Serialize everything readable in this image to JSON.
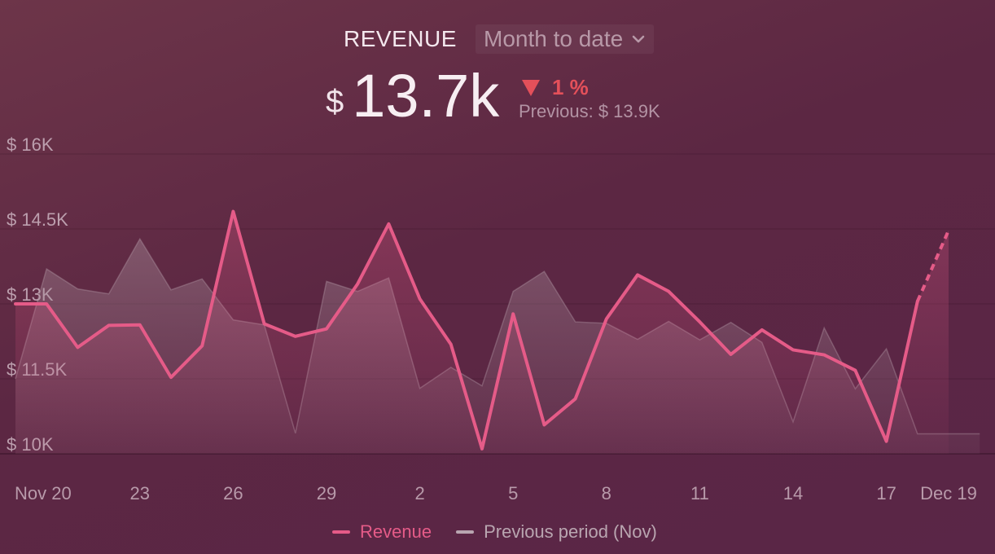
{
  "header": {
    "title": "REVENUE",
    "period_label": "Month to date",
    "currency": "$",
    "value": "13.7k",
    "change_pct": "1 %",
    "change_direction": "down",
    "previous": "Previous: $ 13.9K"
  },
  "colors": {
    "revenue": "#e55b88",
    "previous": "#9b7f8d",
    "negative": "#e4505a"
  },
  "chart_data": {
    "type": "line",
    "ylim": [
      10000,
      16000
    ],
    "yticks": [
      10000,
      11500,
      13000,
      14500,
      16000
    ],
    "ytick_labels": [
      "$ 10K",
      "$ 11.5K",
      "$ 13K",
      "$ 14.5K",
      "$ 16K"
    ],
    "x": [
      "2023-11-19",
      "2023-11-20",
      "2023-11-21",
      "2023-11-22",
      "2023-11-23",
      "2023-11-24",
      "2023-11-25",
      "2023-11-26",
      "2023-11-27",
      "2023-11-28",
      "2023-11-29",
      "2023-11-30",
      "2023-12-01",
      "2023-12-02",
      "2023-12-03",
      "2023-12-04",
      "2023-12-05",
      "2023-12-06",
      "2023-12-07",
      "2023-12-08",
      "2023-12-09",
      "2023-12-10",
      "2023-12-11",
      "2023-12-12",
      "2023-12-13",
      "2023-12-14",
      "2023-12-15",
      "2023-12-16",
      "2023-12-17",
      "2023-12-18",
      "2023-12-19",
      "2023-12-20"
    ],
    "xtick_labels": [
      {
        "date": "2023-11-20",
        "label": "Nov 20"
      },
      {
        "date": "2023-11-23",
        "label": "23"
      },
      {
        "date": "2023-11-26",
        "label": "26"
      },
      {
        "date": "2023-11-29",
        "label": "29"
      },
      {
        "date": "2023-12-02",
        "label": "2"
      },
      {
        "date": "2023-12-05",
        "label": "5"
      },
      {
        "date": "2023-12-08",
        "label": "8"
      },
      {
        "date": "2023-12-11",
        "label": "11"
      },
      {
        "date": "2023-12-14",
        "label": "14"
      },
      {
        "date": "2023-12-17",
        "label": "17"
      },
      {
        "date": "2023-12-19",
        "label": "Dec 19"
      }
    ],
    "series": [
      {
        "name": "Revenue",
        "values": [
          13000,
          13000,
          12130,
          12570,
          12580,
          11530,
          12160,
          14850,
          12600,
          12350,
          12500,
          13400,
          14600,
          13100,
          12190,
          10100,
          12800,
          10580,
          11100,
          12700,
          13580,
          13250,
          12640,
          11990,
          12480,
          12080,
          11980,
          11670,
          10250,
          13050,
          14470,
          null
        ],
        "dashed_from_index": 29
      },
      {
        "name": "Previous period (Nov)",
        "values": [
          11500,
          13700,
          13300,
          13200,
          14300,
          13280,
          13500,
          12680,
          12580,
          10410,
          13450,
          13250,
          13520,
          11310,
          11730,
          11360,
          13250,
          13650,
          12640,
          12610,
          12290,
          12650,
          12280,
          12630,
          12230,
          10640,
          12520,
          11300,
          12100,
          10400,
          10400,
          10400
        ]
      }
    ],
    "legend_position": "bottom",
    "grid": true
  }
}
